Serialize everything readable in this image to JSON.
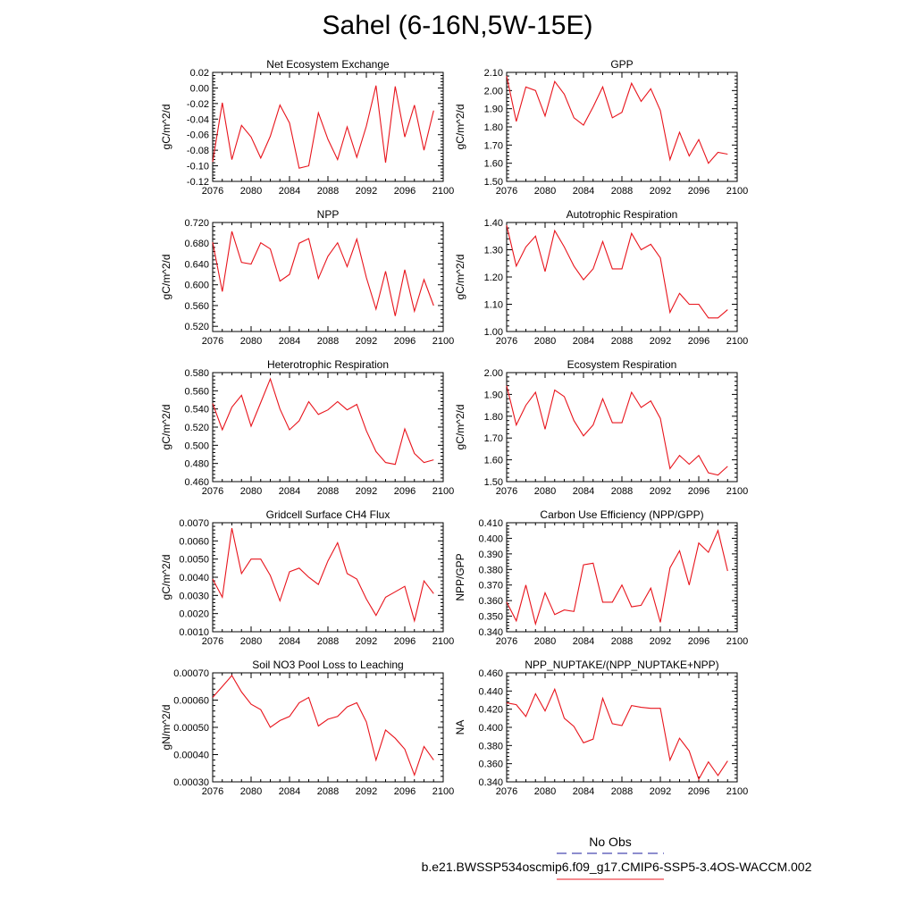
{
  "figure_title": "Sahel (6-16N,5W-15E)",
  "colors": {
    "series": "#e8141c",
    "obs": "#4b4bb0",
    "axis": "#000000"
  },
  "legend": {
    "obs_label": "No Obs",
    "model_label": "b.e21.BWSSP534oscmip6.f09_g17.CMIP6-SSP5-3.4OS-WACCM.002"
  },
  "chart_data": [
    {
      "type": "line",
      "title": "Net Ecosystem Exchange",
      "ylabel": "gC/m^2/d",
      "xlim": [
        2076,
        2100
      ],
      "ylim": [
        -0.12,
        0.02
      ],
      "xticks": [
        "2076",
        "2080",
        "2084",
        "2088",
        "2092",
        "2096",
        "2100"
      ],
      "yticks": [
        "0.02",
        "0.00",
        "-0.02",
        "-0.04",
        "-0.06",
        "-0.08",
        "-0.10",
        "-0.12"
      ],
      "x": [
        2076,
        2077,
        2078,
        2079,
        2080,
        2081,
        2082,
        2083,
        2084,
        2085,
        2086,
        2087,
        2088,
        2089,
        2090,
        2091,
        2092,
        2093,
        2094,
        2095,
        2096,
        2097,
        2098,
        2099
      ],
      "values": [
        -0.095,
        -0.019,
        -0.092,
        -0.048,
        -0.063,
        -0.09,
        -0.062,
        -0.022,
        -0.045,
        -0.103,
        -0.1,
        -0.032,
        -0.066,
        -0.092,
        -0.05,
        -0.089,
        -0.049,
        0.003,
        -0.096,
        0.002,
        -0.063,
        -0.022,
        -0.08,
        -0.029
      ]
    },
    {
      "type": "line",
      "title": "GPP",
      "ylabel": "gC/m^2/d",
      "xlim": [
        2076,
        2100
      ],
      "ylim": [
        1.5,
        2.1
      ],
      "xticks": [
        "2076",
        "2080",
        "2084",
        "2088",
        "2092",
        "2096",
        "2100"
      ],
      "yticks": [
        "2.10",
        "2.00",
        "1.90",
        "1.80",
        "1.70",
        "1.60",
        "1.50"
      ],
      "x": [
        2076,
        2077,
        2078,
        2079,
        2080,
        2081,
        2082,
        2083,
        2084,
        2085,
        2086,
        2087,
        2088,
        2089,
        2090,
        2091,
        2092,
        2093,
        2094,
        2095,
        2096,
        2097,
        2098,
        2099
      ],
      "values": [
        2.08,
        1.83,
        2.02,
        2.0,
        1.86,
        2.05,
        1.98,
        1.85,
        1.81,
        1.91,
        2.02,
        1.85,
        1.88,
        2.04,
        1.94,
        2.01,
        1.89,
        1.62,
        1.77,
        1.64,
        1.73,
        1.6,
        1.66,
        1.65
      ]
    },
    {
      "type": "line",
      "title": "NPP",
      "ylabel": "gC/m^2/d",
      "xlim": [
        2076,
        2100
      ],
      "ylim": [
        0.51,
        0.72
      ],
      "xticks": [
        "2076",
        "2080",
        "2084",
        "2088",
        "2092",
        "2096",
        "2100"
      ],
      "yticks": [
        "0.720",
        "0.680",
        "0.640",
        "0.600",
        "0.560",
        "0.520"
      ],
      "x": [
        2076,
        2077,
        2078,
        2079,
        2080,
        2081,
        2082,
        2083,
        2084,
        2085,
        2086,
        2087,
        2088,
        2089,
        2090,
        2091,
        2092,
        2093,
        2094,
        2095,
        2096,
        2097,
        2098,
        2099
      ],
      "values": [
        0.682,
        0.587,
        0.703,
        0.643,
        0.64,
        0.681,
        0.669,
        0.607,
        0.62,
        0.68,
        0.689,
        0.612,
        0.655,
        0.681,
        0.635,
        0.688,
        0.614,
        0.553,
        0.626,
        0.54,
        0.629,
        0.549,
        0.61,
        0.56
      ]
    },
    {
      "type": "line",
      "title": "Autotrophic Respiration",
      "ylabel": "gC/m^2/d",
      "xlim": [
        2076,
        2100
      ],
      "ylim": [
        1.0,
        1.4
      ],
      "xticks": [
        "2076",
        "2080",
        "2084",
        "2088",
        "2092",
        "2096",
        "2100"
      ],
      "yticks": [
        "1.40",
        "1.30",
        "1.20",
        "1.10",
        "1.00"
      ],
      "x": [
        2076,
        2077,
        2078,
        2079,
        2080,
        2081,
        2082,
        2083,
        2084,
        2085,
        2086,
        2087,
        2088,
        2089,
        2090,
        2091,
        2092,
        2093,
        2094,
        2095,
        2096,
        2097,
        2098,
        2099
      ],
      "values": [
        1.39,
        1.24,
        1.31,
        1.35,
        1.22,
        1.37,
        1.31,
        1.24,
        1.19,
        1.23,
        1.33,
        1.23,
        1.23,
        1.36,
        1.3,
        1.32,
        1.27,
        1.07,
        1.14,
        1.1,
        1.1,
        1.05,
        1.05,
        1.08
      ]
    },
    {
      "type": "line",
      "title": "Heterotrophic Respiration",
      "ylabel": "gC/m^2/d",
      "xlim": [
        2076,
        2100
      ],
      "ylim": [
        0.46,
        0.58
      ],
      "xticks": [
        "2076",
        "2080",
        "2084",
        "2088",
        "2092",
        "2096",
        "2100"
      ],
      "yticks": [
        "0.580",
        "0.560",
        "0.540",
        "0.520",
        "0.500",
        "0.480",
        "0.460"
      ],
      "x": [
        2076,
        2077,
        2078,
        2079,
        2080,
        2081,
        2082,
        2083,
        2084,
        2085,
        2086,
        2087,
        2088,
        2089,
        2090,
        2091,
        2092,
        2093,
        2094,
        2095,
        2096,
        2097,
        2098,
        2099
      ],
      "values": [
        0.546,
        0.517,
        0.542,
        0.555,
        0.521,
        0.547,
        0.573,
        0.54,
        0.517,
        0.527,
        0.548,
        0.534,
        0.539,
        0.548,
        0.539,
        0.545,
        0.516,
        0.493,
        0.481,
        0.479,
        0.518,
        0.491,
        0.481,
        0.484
      ]
    },
    {
      "type": "line",
      "title": "Ecosystem Respiration",
      "ylabel": "gC/m^2/d",
      "xlim": [
        2076,
        2100
      ],
      "ylim": [
        1.5,
        2.0
      ],
      "xticks": [
        "2076",
        "2080",
        "2084",
        "2088",
        "2092",
        "2096",
        "2100"
      ],
      "yticks": [
        "2.00",
        "1.90",
        "1.80",
        "1.70",
        "1.60",
        "1.50"
      ],
      "x": [
        2076,
        2077,
        2078,
        2079,
        2080,
        2081,
        2082,
        2083,
        2084,
        2085,
        2086,
        2087,
        2088,
        2089,
        2090,
        2091,
        2092,
        2093,
        2094,
        2095,
        2096,
        2097,
        2098,
        2099
      ],
      "values": [
        1.94,
        1.76,
        1.85,
        1.91,
        1.74,
        1.92,
        1.89,
        1.78,
        1.71,
        1.76,
        1.88,
        1.77,
        1.77,
        1.91,
        1.84,
        1.87,
        1.79,
        1.56,
        1.62,
        1.58,
        1.62,
        1.54,
        1.53,
        1.57
      ]
    },
    {
      "type": "line",
      "title": "Gridcell Surface CH4 Flux",
      "ylabel": "gC/m^2/d",
      "xlim": [
        2076,
        2100
      ],
      "ylim": [
        0.001,
        0.007
      ],
      "xticks": [
        "2076",
        "2080",
        "2084",
        "2088",
        "2092",
        "2096",
        "2100"
      ],
      "yticks": [
        "0.0070",
        "0.0060",
        "0.0050",
        "0.0040",
        "0.0030",
        "0.0020",
        "0.0010"
      ],
      "x": [
        2076,
        2077,
        2078,
        2079,
        2080,
        2081,
        2082,
        2083,
        2084,
        2085,
        2086,
        2087,
        2088,
        2089,
        2090,
        2091,
        2092,
        2093,
        2094,
        2095,
        2096,
        2097,
        2098,
        2099
      ],
      "values": [
        0.0039,
        0.0029,
        0.0067,
        0.0042,
        0.005,
        0.005,
        0.0041,
        0.0027,
        0.0043,
        0.0045,
        0.004,
        0.0036,
        0.0049,
        0.0059,
        0.0042,
        0.0039,
        0.0028,
        0.0019,
        0.0029,
        0.0032,
        0.0035,
        0.0016,
        0.0038,
        0.0031
      ]
    },
    {
      "type": "line",
      "title": "Carbon Use Efficiency (NPP/GPP)",
      "ylabel": "NPP/GPP",
      "xlim": [
        2076,
        2100
      ],
      "ylim": [
        0.34,
        0.41
      ],
      "xticks": [
        "2076",
        "2080",
        "2084",
        "2088",
        "2092",
        "2096",
        "2100"
      ],
      "yticks": [
        "0.410",
        "0.400",
        "0.390",
        "0.380",
        "0.370",
        "0.360",
        "0.350",
        "0.340"
      ],
      "x": [
        2076,
        2077,
        2078,
        2079,
        2080,
        2081,
        2082,
        2083,
        2084,
        2085,
        2086,
        2087,
        2088,
        2089,
        2090,
        2091,
        2092,
        2093,
        2094,
        2095,
        2096,
        2097,
        2098,
        2099
      ],
      "values": [
        0.359,
        0.347,
        0.37,
        0.345,
        0.365,
        0.351,
        0.354,
        0.353,
        0.383,
        0.384,
        0.359,
        0.359,
        0.37,
        0.356,
        0.357,
        0.368,
        0.346,
        0.381,
        0.392,
        0.37,
        0.397,
        0.391,
        0.405,
        0.379
      ]
    },
    {
      "type": "line",
      "title": "Soil NO3 Pool Loss to Leaching",
      "ylabel": "gN/m^2/d",
      "xlim": [
        2076,
        2100
      ],
      "ylim": [
        0.0003,
        0.0007
      ],
      "xticks": [
        "2076",
        "2080",
        "2084",
        "2088",
        "2092",
        "2096",
        "2100"
      ],
      "yticks": [
        "0.00070",
        "0.00060",
        "0.00050",
        "0.00040",
        "0.00030"
      ],
      "x": [
        2076,
        2077,
        2078,
        2079,
        2080,
        2081,
        2082,
        2083,
        2084,
        2085,
        2086,
        2087,
        2088,
        2089,
        2090,
        2091,
        2092,
        2093,
        2094,
        2095,
        2096,
        2097,
        2098,
        2099
      ],
      "values": [
        0.00061,
        0.00065,
        0.00069,
        0.00063,
        0.000585,
        0.000565,
        0.0005,
        0.000525,
        0.00054,
        0.00059,
        0.00061,
        0.000505,
        0.00053,
        0.00054,
        0.000575,
        0.00059,
        0.00052,
        0.00038,
        0.00049,
        0.00046,
        0.00042,
        0.000325,
        0.00043,
        0.00038
      ]
    },
    {
      "type": "line",
      "title": "NPP_NUPTAKE/(NPP_NUPTAKE+NPP)",
      "ylabel": "NA",
      "xlim": [
        2076,
        2100
      ],
      "ylim": [
        0.34,
        0.46
      ],
      "xticks": [
        "2076",
        "2080",
        "2084",
        "2088",
        "2092",
        "2096",
        "2100"
      ],
      "yticks": [
        "0.460",
        "0.440",
        "0.420",
        "0.400",
        "0.380",
        "0.360",
        "0.340"
      ],
      "x": [
        2076,
        2077,
        2078,
        2079,
        2080,
        2081,
        2082,
        2083,
        2084,
        2085,
        2086,
        2087,
        2088,
        2089,
        2090,
        2091,
        2092,
        2093,
        2094,
        2095,
        2096,
        2097,
        2098,
        2099
      ],
      "values": [
        0.427,
        0.425,
        0.412,
        0.437,
        0.418,
        0.442,
        0.41,
        0.401,
        0.383,
        0.387,
        0.432,
        0.404,
        0.402,
        0.424,
        0.422,
        0.421,
        0.421,
        0.364,
        0.388,
        0.374,
        0.343,
        0.362,
        0.347,
        0.363
      ]
    }
  ]
}
